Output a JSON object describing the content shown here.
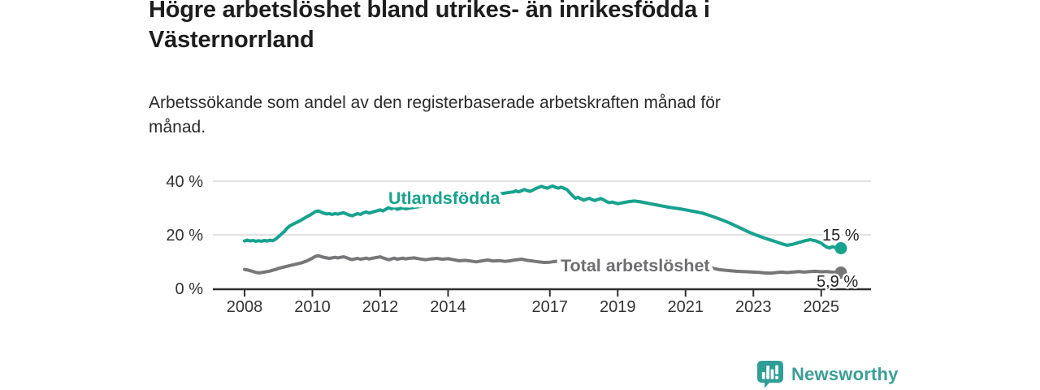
{
  "header": {
    "title": "Högre arbetslöshet bland utrikes- än inrikesfödda i\nVästernorrland",
    "subtitle": "Arbetssökande som andel av den registerbaserade arbetskraften månad för\nmånad."
  },
  "chart_data": {
    "type": "line",
    "title": "Högre arbetslöshet bland utrikes- än inrikesfödda i Västernorrland",
    "subtitle": "Arbetssökande som andel av den registerbaserade arbetskraften månad för månad.",
    "xlabel": "",
    "ylabel": "",
    "xlim": [
      2007.07,
      2026.47
    ],
    "ylim": [
      0,
      40
    ],
    "grid": "horizontal",
    "legend_position": "inline-labels",
    "y_ticks": [
      {
        "value": 0,
        "label": "0 %"
      },
      {
        "value": 20,
        "label": "20 %"
      },
      {
        "value": 40,
        "label": "40 %"
      }
    ],
    "x_ticks": [
      {
        "value": 2008,
        "label": "2008"
      },
      {
        "value": 2010,
        "label": "2010"
      },
      {
        "value": 2012,
        "label": "2012"
      },
      {
        "value": 2014,
        "label": "2014"
      },
      {
        "value": 2017,
        "label": "2017"
      },
      {
        "value": 2019,
        "label": "2019"
      },
      {
        "value": 2021,
        "label": "2021"
      },
      {
        "value": 2023,
        "label": "2023"
      },
      {
        "value": 2025,
        "label": "2025"
      }
    ],
    "series": [
      {
        "name": "Utlandsfödda",
        "color": "#17a28e",
        "end_label": "15 %",
        "end_value": 15.0,
        "points": [
          [
            2008.0,
            17.7
          ],
          [
            2008.08,
            18.0
          ],
          [
            2008.17,
            17.7
          ],
          [
            2008.25,
            17.9
          ],
          [
            2008.33,
            17.6
          ],
          [
            2008.42,
            17.8
          ],
          [
            2008.5,
            17.6
          ],
          [
            2008.58,
            17.9
          ],
          [
            2008.67,
            17.7
          ],
          [
            2008.75,
            18.0
          ],
          [
            2008.83,
            17.8
          ],
          [
            2008.92,
            18.4
          ],
          [
            2009.0,
            19.3
          ],
          [
            2009.08,
            20.2
          ],
          [
            2009.17,
            21.2
          ],
          [
            2009.25,
            22.4
          ],
          [
            2009.33,
            23.3
          ],
          [
            2009.42,
            23.9
          ],
          [
            2009.5,
            24.4
          ],
          [
            2009.58,
            24.9
          ],
          [
            2009.67,
            25.5
          ],
          [
            2009.75,
            26.1
          ],
          [
            2009.83,
            26.7
          ],
          [
            2009.92,
            27.3
          ],
          [
            2010.0,
            27.9
          ],
          [
            2010.08,
            28.6
          ],
          [
            2010.17,
            28.9
          ],
          [
            2010.25,
            28.5
          ],
          [
            2010.33,
            28.1
          ],
          [
            2010.42,
            27.8
          ],
          [
            2010.5,
            27.9
          ],
          [
            2010.58,
            27.6
          ],
          [
            2010.67,
            27.9
          ],
          [
            2010.75,
            27.7
          ],
          [
            2010.83,
            28.0
          ],
          [
            2010.92,
            28.2
          ],
          [
            2011.0,
            27.8
          ],
          [
            2011.08,
            27.4
          ],
          [
            2011.17,
            27.1
          ],
          [
            2011.25,
            27.5
          ],
          [
            2011.33,
            27.9
          ],
          [
            2011.42,
            27.6
          ],
          [
            2011.5,
            28.2
          ],
          [
            2011.58,
            28.5
          ],
          [
            2011.67,
            28.1
          ],
          [
            2011.75,
            28.4
          ],
          [
            2011.83,
            28.7
          ],
          [
            2011.92,
            29.0
          ],
          [
            2012.0,
            29.3
          ],
          [
            2012.08,
            28.9
          ],
          [
            2012.17,
            29.6
          ],
          [
            2012.25,
            30.1
          ],
          [
            2012.33,
            29.7
          ],
          [
            2012.42,
            30.2
          ],
          [
            2012.5,
            29.5
          ],
          [
            2012.58,
            29.8
          ],
          [
            2012.67,
            30.0
          ],
          [
            2012.75,
            29.7
          ],
          [
            2012.83,
            29.9
          ],
          [
            2013.0,
            30.2
          ],
          [
            2013.25,
            30.7
          ],
          [
            2013.5,
            31.2
          ],
          [
            2013.75,
            31.7
          ],
          [
            2014.0,
            32.2
          ],
          [
            2014.25,
            32.7
          ],
          [
            2014.5,
            33.2
          ],
          [
            2014.75,
            33.7
          ],
          [
            2015.0,
            34.2
          ],
          [
            2015.25,
            34.7
          ],
          [
            2015.5,
            35.2
          ],
          [
            2015.75,
            35.7
          ],
          [
            2015.92,
            36.0
          ],
          [
            2016.0,
            36.4
          ],
          [
            2016.08,
            36.0
          ],
          [
            2016.17,
            36.5
          ],
          [
            2016.25,
            36.9
          ],
          [
            2016.33,
            36.5
          ],
          [
            2016.42,
            36.2
          ],
          [
            2016.5,
            36.7
          ],
          [
            2016.58,
            37.2
          ],
          [
            2016.67,
            37.7
          ],
          [
            2016.75,
            38.1
          ],
          [
            2016.83,
            37.7
          ],
          [
            2016.92,
            37.4
          ],
          [
            2017.0,
            37.8
          ],
          [
            2017.08,
            38.2
          ],
          [
            2017.17,
            37.7
          ],
          [
            2017.25,
            37.4
          ],
          [
            2017.33,
            37.8
          ],
          [
            2017.42,
            37.3
          ],
          [
            2017.5,
            36.9
          ],
          [
            2017.58,
            35.8
          ],
          [
            2017.67,
            34.6
          ],
          [
            2017.75,
            33.6
          ],
          [
            2017.83,
            34.0
          ],
          [
            2017.92,
            33.4
          ],
          [
            2018.0,
            32.9
          ],
          [
            2018.08,
            33.3
          ],
          [
            2018.17,
            33.6
          ],
          [
            2018.25,
            33.1
          ],
          [
            2018.33,
            32.8
          ],
          [
            2018.42,
            33.2
          ],
          [
            2018.5,
            33.5
          ],
          [
            2018.58,
            33.1
          ],
          [
            2018.67,
            32.4
          ],
          [
            2018.75,
            32.0
          ],
          [
            2018.83,
            32.2
          ],
          [
            2018.92,
            31.9
          ],
          [
            2019.0,
            31.6
          ],
          [
            2019.17,
            32.0
          ],
          [
            2019.33,
            32.4
          ],
          [
            2019.5,
            32.6
          ],
          [
            2019.67,
            32.3
          ],
          [
            2019.83,
            31.9
          ],
          [
            2020.0,
            31.5
          ],
          [
            2020.17,
            31.1
          ],
          [
            2020.33,
            30.7
          ],
          [
            2020.5,
            30.3
          ],
          [
            2020.67,
            30.0
          ],
          [
            2020.83,
            29.7
          ],
          [
            2021.0,
            29.3
          ],
          [
            2021.17,
            28.9
          ],
          [
            2021.33,
            28.5
          ],
          [
            2021.5,
            28.1
          ],
          [
            2021.67,
            27.4
          ],
          [
            2021.83,
            26.7
          ],
          [
            2022.0,
            25.9
          ],
          [
            2022.17,
            25.1
          ],
          [
            2022.33,
            24.2
          ],
          [
            2022.5,
            23.2
          ],
          [
            2022.67,
            22.2
          ],
          [
            2022.83,
            21.2
          ],
          [
            2023.0,
            20.3
          ],
          [
            2023.17,
            19.5
          ],
          [
            2023.33,
            18.8
          ],
          [
            2023.5,
            18.1
          ],
          [
            2023.67,
            17.4
          ],
          [
            2023.83,
            16.7
          ],
          [
            2024.0,
            16.1
          ],
          [
            2024.17,
            16.5
          ],
          [
            2024.33,
            17.1
          ],
          [
            2024.5,
            17.7
          ],
          [
            2024.67,
            18.2
          ],
          [
            2024.83,
            17.8
          ],
          [
            2025.0,
            16.9
          ],
          [
            2025.08,
            16.1
          ],
          [
            2025.17,
            15.4
          ],
          [
            2025.25,
            15.1
          ],
          [
            2025.33,
            15.6
          ],
          [
            2025.42,
            15.2
          ],
          [
            2025.5,
            14.9
          ],
          [
            2025.58,
            15.0
          ]
        ]
      },
      {
        "name": "Total arbetslöshet",
        "color": "#77777a",
        "end_label": "5,9 %",
        "end_value": 5.9,
        "points": [
          [
            2008.0,
            7.1
          ],
          [
            2008.08,
            6.9
          ],
          [
            2008.17,
            6.6
          ],
          [
            2008.25,
            6.3
          ],
          [
            2008.33,
            6.0
          ],
          [
            2008.42,
            5.8
          ],
          [
            2008.5,
            5.9
          ],
          [
            2008.58,
            6.1
          ],
          [
            2008.67,
            6.3
          ],
          [
            2008.75,
            6.5
          ],
          [
            2008.83,
            6.8
          ],
          [
            2008.92,
            7.1
          ],
          [
            2009.0,
            7.5
          ],
          [
            2009.17,
            8.0
          ],
          [
            2009.33,
            8.5
          ],
          [
            2009.5,
            9.0
          ],
          [
            2009.67,
            9.5
          ],
          [
            2009.83,
            10.2
          ],
          [
            2010.0,
            11.3
          ],
          [
            2010.08,
            11.9
          ],
          [
            2010.17,
            12.2
          ],
          [
            2010.25,
            11.9
          ],
          [
            2010.33,
            11.6
          ],
          [
            2010.42,
            11.4
          ],
          [
            2010.5,
            11.2
          ],
          [
            2010.58,
            11.4
          ],
          [
            2010.67,
            11.6
          ],
          [
            2010.75,
            11.4
          ],
          [
            2010.83,
            11.6
          ],
          [
            2010.92,
            11.8
          ],
          [
            2011.0,
            11.5
          ],
          [
            2011.08,
            11.1
          ],
          [
            2011.17,
            10.8
          ],
          [
            2011.25,
            11.0
          ],
          [
            2011.33,
            11.2
          ],
          [
            2011.42,
            10.9
          ],
          [
            2011.5,
            11.1
          ],
          [
            2011.58,
            11.3
          ],
          [
            2011.67,
            11.0
          ],
          [
            2011.75,
            11.2
          ],
          [
            2011.83,
            11.4
          ],
          [
            2011.92,
            11.6
          ],
          [
            2012.0,
            11.8
          ],
          [
            2012.08,
            11.4
          ],
          [
            2012.17,
            11.0
          ],
          [
            2012.25,
            10.7
          ],
          [
            2012.33,
            11.0
          ],
          [
            2012.42,
            11.3
          ],
          [
            2012.5,
            10.9
          ],
          [
            2012.58,
            11.1
          ],
          [
            2012.67,
            11.3
          ],
          [
            2012.75,
            11.0
          ],
          [
            2012.83,
            11.2
          ],
          [
            2013.0,
            11.4
          ],
          [
            2013.17,
            11.0
          ],
          [
            2013.33,
            10.7
          ],
          [
            2013.5,
            11.0
          ],
          [
            2013.67,
            11.2
          ],
          [
            2013.83,
            10.9
          ],
          [
            2014.0,
            11.1
          ],
          [
            2014.17,
            10.7
          ],
          [
            2014.33,
            10.3
          ],
          [
            2014.5,
            10.5
          ],
          [
            2014.67,
            10.2
          ],
          [
            2014.83,
            9.9
          ],
          [
            2015.0,
            10.3
          ],
          [
            2015.17,
            10.6
          ],
          [
            2015.33,
            10.2
          ],
          [
            2015.5,
            10.4
          ],
          [
            2015.67,
            10.1
          ],
          [
            2015.83,
            10.3
          ],
          [
            2016.0,
            10.7
          ],
          [
            2016.17,
            10.9
          ],
          [
            2016.33,
            10.5
          ],
          [
            2016.5,
            10.2
          ],
          [
            2016.67,
            9.9
          ],
          [
            2016.83,
            9.7
          ],
          [
            2017.0,
            9.8
          ],
          [
            2017.17,
            10.1
          ],
          [
            2017.33,
            10.3
          ],
          [
            2017.5,
            9.9
          ],
          [
            2018.0,
            9.4
          ],
          [
            2018.5,
            9.0
          ],
          [
            2019.0,
            8.7
          ],
          [
            2019.5,
            8.5
          ],
          [
            2020.0,
            8.9
          ],
          [
            2020.42,
            9.4
          ],
          [
            2020.83,
            9.1
          ],
          [
            2021.25,
            8.6
          ],
          [
            2021.67,
            7.9
          ],
          [
            2022.0,
            7.0
          ],
          [
            2022.17,
            6.8
          ],
          [
            2022.33,
            6.6
          ],
          [
            2022.5,
            6.4
          ],
          [
            2022.67,
            6.3
          ],
          [
            2022.83,
            6.2
          ],
          [
            2023.0,
            6.1
          ],
          [
            2023.17,
            6.0
          ],
          [
            2023.33,
            5.8
          ],
          [
            2023.5,
            5.7
          ],
          [
            2023.67,
            5.9
          ],
          [
            2023.83,
            6.1
          ],
          [
            2024.0,
            5.9
          ],
          [
            2024.17,
            6.1
          ],
          [
            2024.33,
            6.3
          ],
          [
            2024.5,
            6.1
          ],
          [
            2024.67,
            6.3
          ],
          [
            2024.83,
            6.4
          ],
          [
            2025.0,
            6.2
          ],
          [
            2025.17,
            6.3
          ],
          [
            2025.33,
            6.1
          ],
          [
            2025.5,
            6.0
          ],
          [
            2025.58,
            5.9
          ]
        ]
      }
    ],
    "colors": {
      "grid": "#d9d9d9",
      "axis": "#2f2f2f",
      "tick_text": "#333333",
      "end_label_text": "#222222",
      "series_label_utlandsfodda": "#17a28e",
      "series_label_total": "#6e6e71"
    }
  },
  "branding": {
    "logo_text": "Newsworthy",
    "logo_color": "#3b9e96",
    "icon": "newsworthy-bar-chart-bubble-icon",
    "icon_color": "#2f9e97"
  }
}
